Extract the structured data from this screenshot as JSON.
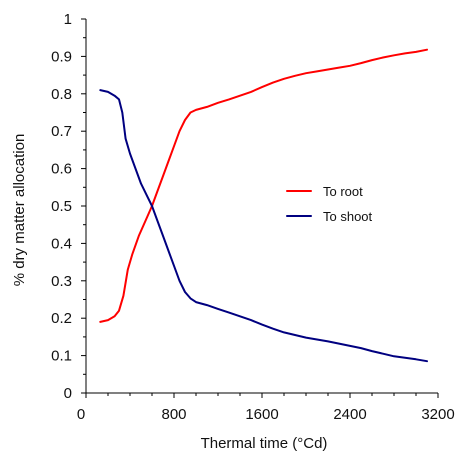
{
  "chart_data": {
    "type": "line",
    "title": "",
    "xlabel": "Thermal time (°Cd)",
    "ylabel": "% dry matter allocation",
    "xlim": [
      0,
      3200
    ],
    "ylim": [
      0,
      1
    ],
    "x_ticks": [
      0,
      800,
      1600,
      2400,
      3200
    ],
    "y_ticks": [
      0,
      0.1,
      0.2,
      0.3,
      0.4,
      0.5,
      0.6,
      0.7,
      0.8,
      0.9,
      1
    ],
    "x_tick_labels": [
      "0",
      "800",
      "1600",
      "2400",
      "3200"
    ],
    "y_tick_labels": [
      "0",
      "0.1",
      "0.2",
      "0.3",
      "0.4",
      "0.5",
      "0.6",
      "0.7",
      "0.8",
      "0.9",
      "1"
    ],
    "grid": false,
    "legend_position": "right-middle",
    "series": [
      {
        "name": "To root",
        "color": "#ff0000",
        "points": [
          [
            130,
            0.19
          ],
          [
            200,
            0.195
          ],
          [
            260,
            0.205
          ],
          [
            300,
            0.22
          ],
          [
            340,
            0.26
          ],
          [
            380,
            0.33
          ],
          [
            420,
            0.37
          ],
          [
            480,
            0.42
          ],
          [
            540,
            0.46
          ],
          [
            600,
            0.5
          ],
          [
            650,
            0.54
          ],
          [
            700,
            0.58
          ],
          [
            750,
            0.62
          ],
          [
            800,
            0.66
          ],
          [
            850,
            0.7
          ],
          [
            900,
            0.73
          ],
          [
            950,
            0.75
          ],
          [
            1000,
            0.757
          ],
          [
            1100,
            0.765
          ],
          [
            1200,
            0.776
          ],
          [
            1300,
            0.785
          ],
          [
            1400,
            0.795
          ],
          [
            1500,
            0.805
          ],
          [
            1600,
            0.818
          ],
          [
            1700,
            0.83
          ],
          [
            1800,
            0.84
          ],
          [
            1900,
            0.848
          ],
          [
            2000,
            0.855
          ],
          [
            2100,
            0.86
          ],
          [
            2200,
            0.865
          ],
          [
            2300,
            0.87
          ],
          [
            2400,
            0.875
          ],
          [
            2500,
            0.882
          ],
          [
            2600,
            0.89
          ],
          [
            2700,
            0.897
          ],
          [
            2800,
            0.903
          ],
          [
            2900,
            0.908
          ],
          [
            3000,
            0.912
          ],
          [
            3100,
            0.918
          ]
        ]
      },
      {
        "name": "To shoot",
        "color": "#000080",
        "points": [
          [
            130,
            0.81
          ],
          [
            200,
            0.805
          ],
          [
            260,
            0.795
          ],
          [
            300,
            0.785
          ],
          [
            330,
            0.75
          ],
          [
            360,
            0.68
          ],
          [
            400,
            0.64
          ],
          [
            450,
            0.6
          ],
          [
            500,
            0.56
          ],
          [
            550,
            0.53
          ],
          [
            600,
            0.5
          ],
          [
            650,
            0.46
          ],
          [
            700,
            0.42
          ],
          [
            750,
            0.38
          ],
          [
            800,
            0.34
          ],
          [
            850,
            0.3
          ],
          [
            900,
            0.27
          ],
          [
            950,
            0.253
          ],
          [
            1000,
            0.243
          ],
          [
            1100,
            0.235
          ],
          [
            1200,
            0.225
          ],
          [
            1300,
            0.215
          ],
          [
            1400,
            0.205
          ],
          [
            1500,
            0.195
          ],
          [
            1600,
            0.183
          ],
          [
            1700,
            0.172
          ],
          [
            1800,
            0.162
          ],
          [
            1900,
            0.155
          ],
          [
            2000,
            0.148
          ],
          [
            2100,
            0.143
          ],
          [
            2200,
            0.138
          ],
          [
            2300,
            0.132
          ],
          [
            2400,
            0.126
          ],
          [
            2500,
            0.12
          ],
          [
            2600,
            0.112
          ],
          [
            2700,
            0.105
          ],
          [
            2800,
            0.098
          ],
          [
            2900,
            0.094
          ],
          [
            3000,
            0.09
          ],
          [
            3100,
            0.085
          ]
        ]
      }
    ]
  }
}
